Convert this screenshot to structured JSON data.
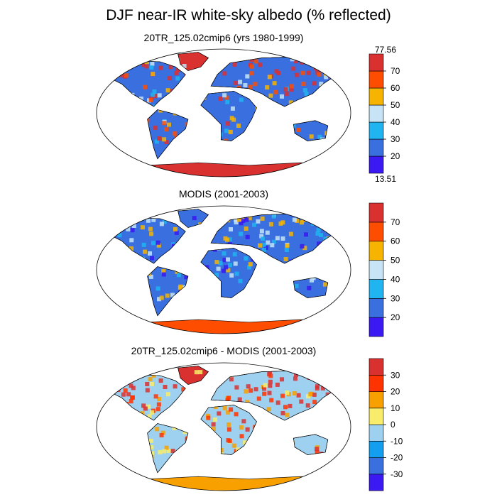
{
  "title": "DJF near-IR white-sky albedo (% reflected)",
  "colors": {
    "land_low": "#3a6fe0",
    "land_mid": "#20b4f0",
    "ice_sea": "#d93030",
    "ocean": "#ffffff",
    "outline": "#000000"
  },
  "panels": [
    {
      "id": "model",
      "title": "20TR_125.02cmip6 (yrs 1980-1999)",
      "colorbar": {
        "colors": [
          "#3a19f2",
          "#3a6fe0",
          "#20b4f0",
          "#c6e4f6",
          "#f6b400",
          "#ff4d00",
          "#d93030"
        ],
        "ticks": [
          "20",
          "30",
          "40",
          "50",
          "60",
          "70"
        ],
        "min_label": "13.51",
        "max_label": "77.56"
      }
    },
    {
      "id": "obs",
      "title": "MODIS (2001-2003)",
      "colorbar": {
        "colors": [
          "#3a19f2",
          "#3a6fe0",
          "#20b4f0",
          "#c6e4f6",
          "#f6b400",
          "#ff4d00",
          "#d93030"
        ],
        "ticks": [
          "20",
          "30",
          "40",
          "50",
          "60",
          "70"
        ],
        "min_label": "",
        "max_label": ""
      }
    },
    {
      "id": "diff",
      "title": "20TR_125.02cmip6 - MODIS (2001-2003)",
      "colorbar": {
        "colors": [
          "#3a19f2",
          "#3a6fe0",
          "#149ef0",
          "#9ed0ef",
          "#f8ec6a",
          "#f7a000",
          "#ff3300",
          "#d93030"
        ],
        "ticks": [
          "-30",
          "-20",
          "-10",
          "0",
          "10",
          "20",
          "30"
        ],
        "min_label": "",
        "max_label": ""
      }
    }
  ]
}
